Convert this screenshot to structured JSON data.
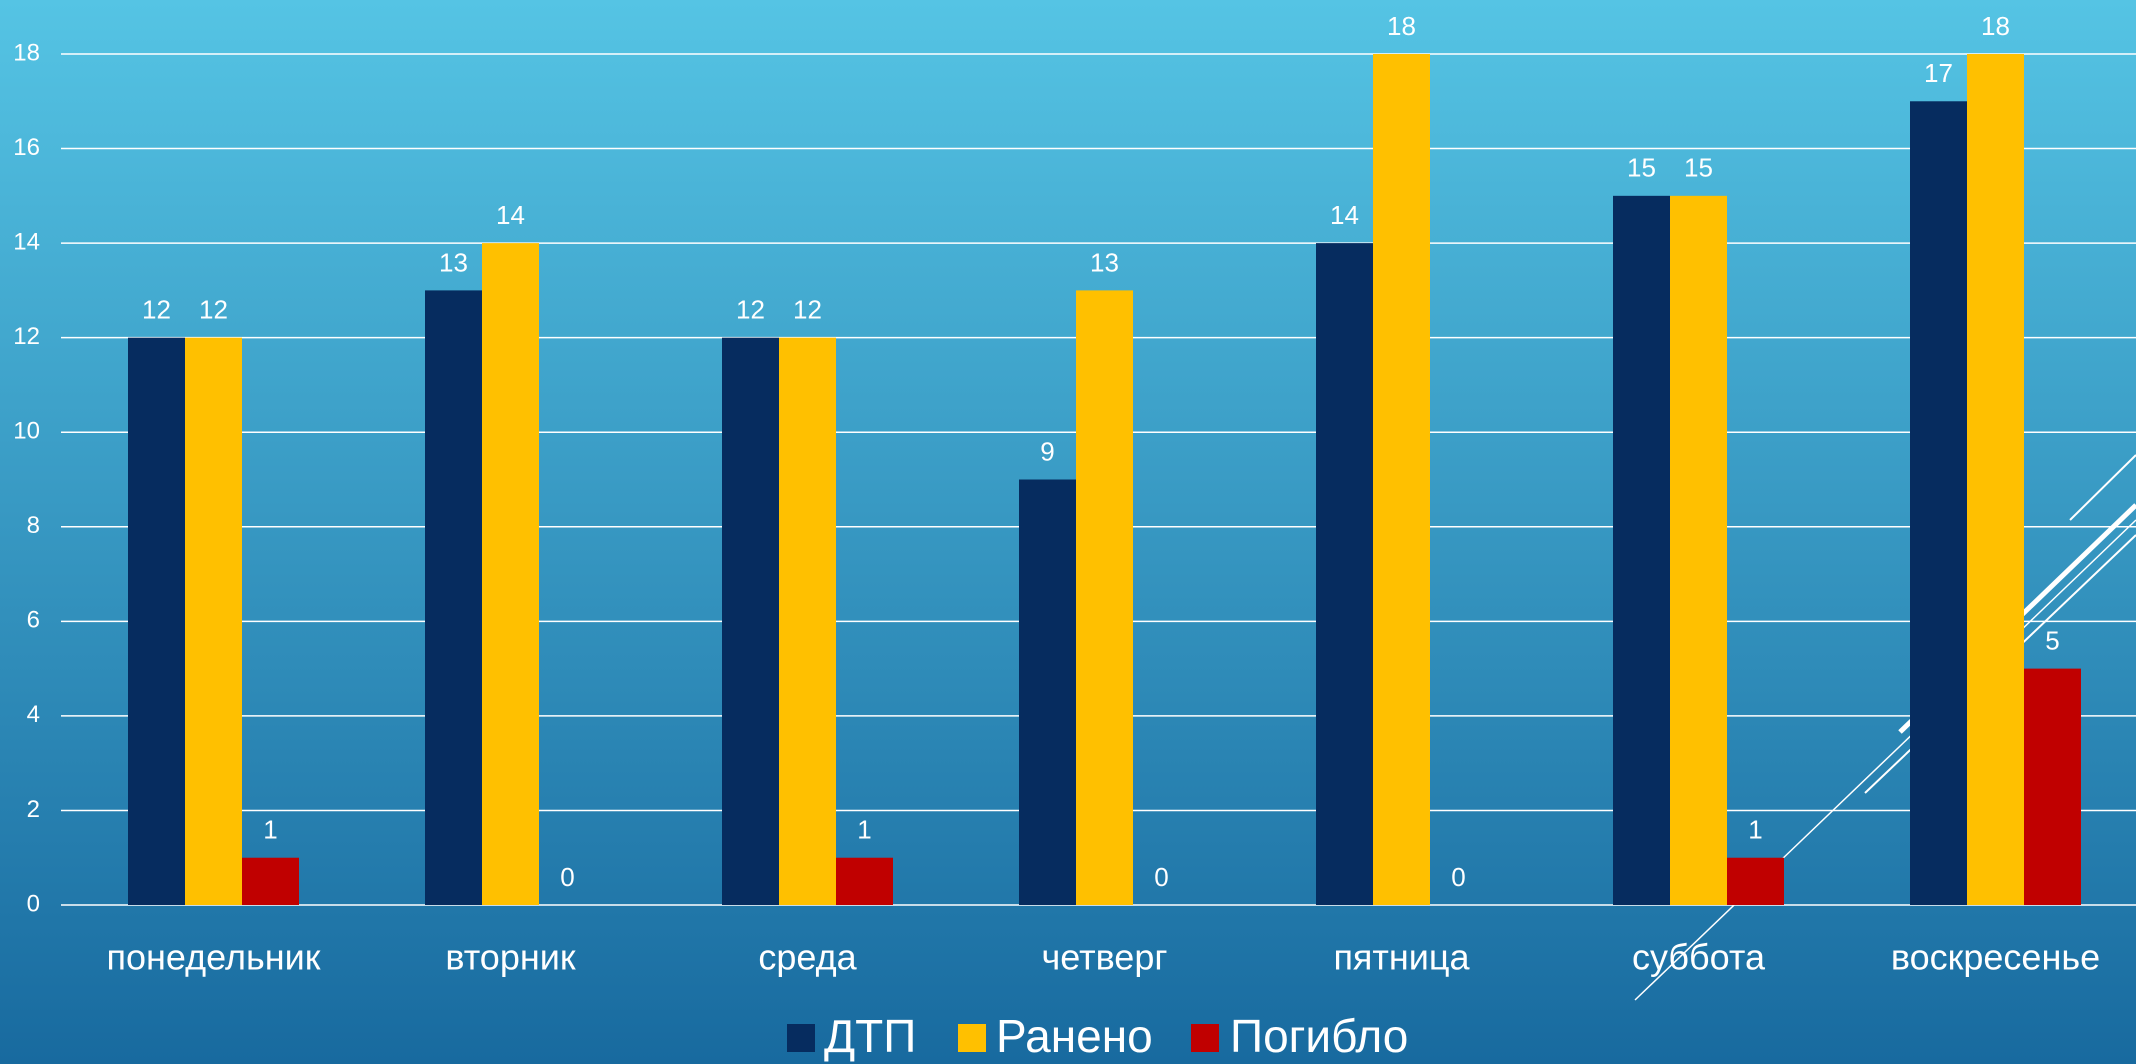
{
  "chart_data": {
    "type": "bar",
    "categories": [
      "понедельник",
      "вторник",
      "среда",
      "четверг",
      "пятница",
      "суббота",
      "воскресенье"
    ],
    "series": [
      {
        "name": "ДТП",
        "color": "#062c5f",
        "values": [
          12,
          13,
          12,
          9,
          14,
          15,
          17
        ]
      },
      {
        "name": "Ранено",
        "color": "#ffc000",
        "values": [
          12,
          14,
          12,
          13,
          18,
          15,
          18
        ]
      },
      {
        "name": "Погибло",
        "color": "#c00000",
        "values": [
          1,
          0,
          1,
          0,
          0,
          1,
          5
        ]
      }
    ],
    "ylim": [
      0,
      18
    ],
    "yticks": [
      0,
      2,
      4,
      6,
      8,
      10,
      12,
      14,
      16,
      18
    ],
    "grid": true,
    "legend": "bottom"
  }
}
